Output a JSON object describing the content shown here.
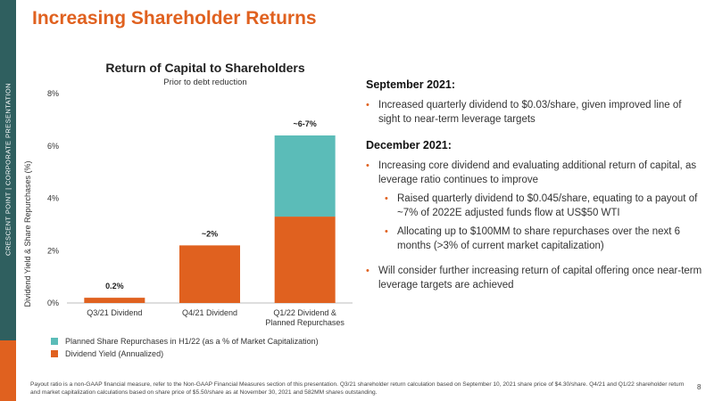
{
  "side_label": "CRESCENT POINT   |   CORPORATE PRESENTATION",
  "page_title": "Increasing Shareholder Returns",
  "chart_data": {
    "type": "bar",
    "stacked": true,
    "title": "Return of Capital to Shareholders",
    "subtitle": "Prior to debt reduction",
    "ylabel": "Dividend Yield & Share Repurchases (%)",
    "ylim": [
      0,
      8
    ],
    "yticks": [
      "0%",
      "2%",
      "4%",
      "6%",
      "8%"
    ],
    "categories": [
      "Q3/21 Dividend",
      "Q4/21 Dividend",
      "Q1/22 Dividend & Planned Repurchases"
    ],
    "category_lines": [
      [
        "Q3/21 Dividend"
      ],
      [
        "Q4/21 Dividend"
      ],
      [
        "Q1/22 Dividend &",
        "Planned Repurchases"
      ]
    ],
    "series": [
      {
        "name": "Dividend Yield (Annualized)",
        "values": [
          0.2,
          2.2,
          3.3
        ],
        "color": "#e0611f"
      },
      {
        "name": "Planned Share Repurchases in H1/22 (as a % of Market Capitalization)",
        "values": [
          0,
          0,
          3.1
        ],
        "color": "#5bbcb8"
      }
    ],
    "data_labels": [
      "0.2%",
      "~2%",
      "~6-7%"
    ],
    "legend": [
      {
        "label": "Planned Share Repurchases in H1/22 (as a % of Market Capitalization)",
        "color": "#5bbcb8"
      },
      {
        "label": "Dividend Yield (Annualized)",
        "color": "#e0611f"
      }
    ],
    "legend_position": "bottom-left",
    "grid": false
  },
  "sections": [
    {
      "heading": "September 2021:",
      "bullets": [
        {
          "level": 1,
          "text": "Increased quarterly dividend to $0.03/share, given improved line of sight to near-term leverage targets"
        }
      ]
    },
    {
      "heading": "December 2021:",
      "bullets": [
        {
          "level": 1,
          "text": "Increasing core dividend and evaluating additional return of capital, as leverage ratio continues to improve"
        },
        {
          "level": 2,
          "text": "Raised quarterly dividend to $0.045/share, equating to a payout of ~7% of 2022E adjusted funds flow at US$50 WTI"
        },
        {
          "level": 2,
          "text": "Allocating up to $100MM to share repurchases over the next 6 months (>3% of current market capitalization)"
        },
        {
          "level": 1,
          "text": "Will consider further increasing return of capital offering once near-term leverage targets are achieved"
        }
      ]
    }
  ],
  "footnote": "Payout ratio is a non-GAAP financial measure, refer to the Non-GAAP Financial Measures section of this presentation. Q3/21 shareholder return calculation based on September 10, 2021 share price of $4.30/share. Q4/21 and Q1/22 shareholder return and market capitalization calculations based on share price of $5.50/share as at November 30, 2021 and 582MM shares outstanding.",
  "page_number": "8"
}
